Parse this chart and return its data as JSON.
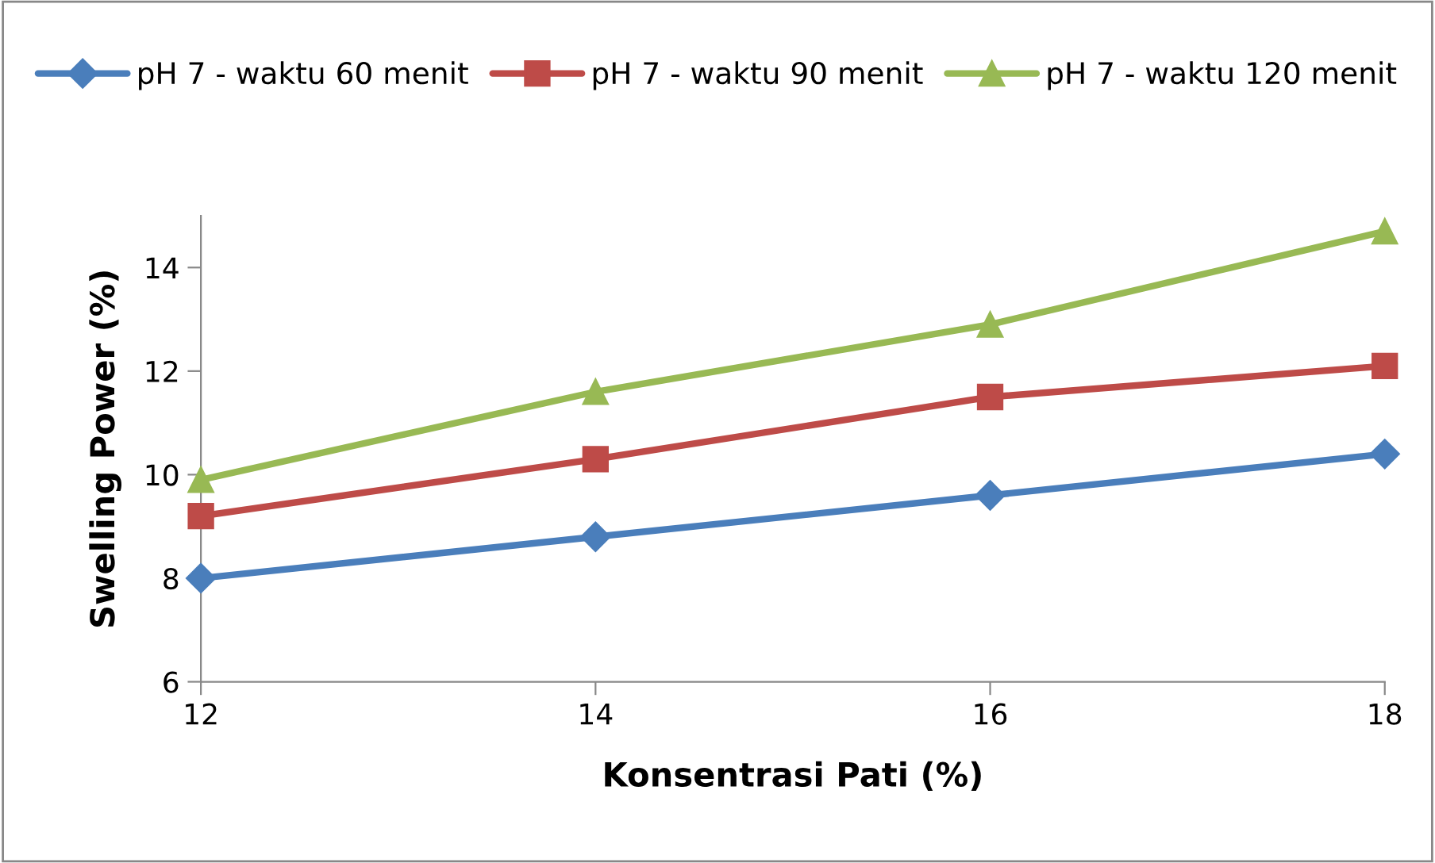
{
  "chart_data": {
    "type": "line",
    "xlabel": "Konsentrasi Pati (%)",
    "ylabel": "Swelling Power (%)",
    "x": [
      12,
      14,
      16,
      18
    ],
    "series": [
      {
        "name": "pH 7 - waktu 60 menit",
        "color": "#4a7ebb",
        "marker": "diamond",
        "values": [
          8.0,
          8.8,
          9.6,
          10.4
        ]
      },
      {
        "name": "pH 7 - waktu 90 menit",
        "color": "#be4b48",
        "marker": "square",
        "values": [
          9.2,
          10.3,
          11.5,
          12.1
        ]
      },
      {
        "name": "pH 7 - waktu 120 menit",
        "color": "#98b954",
        "marker": "triangle",
        "values": [
          9.9,
          11.6,
          12.9,
          14.7
        ]
      }
    ],
    "xlim": [
      12,
      18
    ],
    "xticks": [
      12,
      14,
      16,
      18
    ],
    "ylim": [
      6,
      15
    ],
    "yticks": [
      6,
      8,
      10,
      12,
      14
    ],
    "grid": false,
    "legend": "top",
    "line_style": "solid"
  }
}
